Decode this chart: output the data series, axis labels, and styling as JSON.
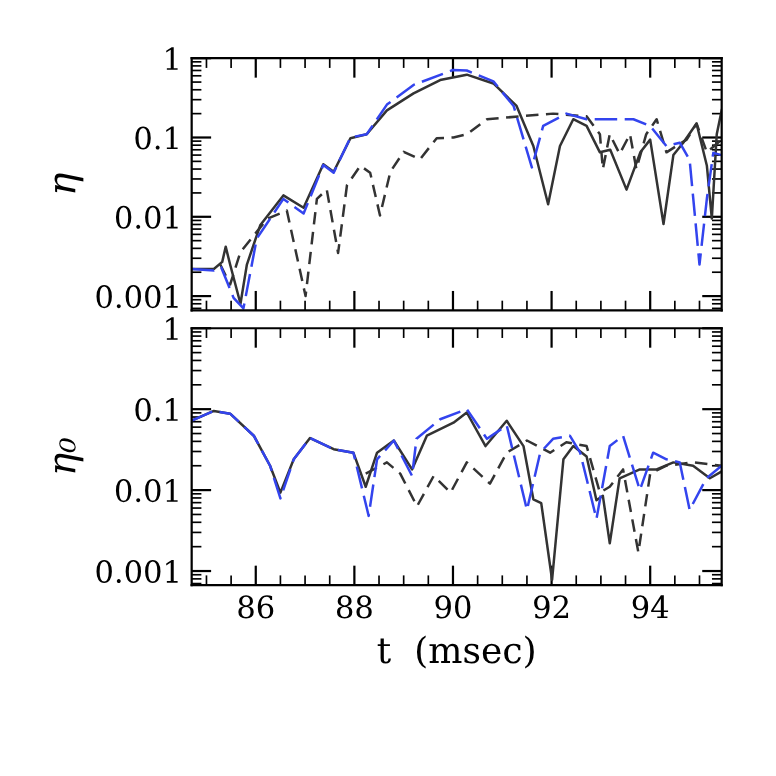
{
  "chart_data": [
    {
      "type": "line",
      "ylabel": "η",
      "log": "y",
      "xlim": [
        84.7,
        95.45
      ],
      "ylim": [
        0.00066,
        1
      ],
      "xticks": [
        86,
        88,
        90,
        92,
        94
      ],
      "yticks": [
        0.001,
        0.01,
        0.1,
        1
      ],
      "tick_labels": "y",
      "series": [
        {
          "color": "#333333",
          "line_style": "solid",
          "x": [
            84.7,
            85.15,
            85.32,
            85.39,
            85.48,
            85.69,
            85.82,
            86.09,
            86.56,
            86.97,
            87.37,
            87.58,
            87.92,
            88.25,
            88.66,
            89.2,
            89.74,
            90.28,
            90.82,
            91.29,
            91.63,
            91.93,
            92.17,
            92.44,
            92.71,
            92.98,
            93.19,
            93.52,
            93.8,
            94.0,
            94.27,
            94.47,
            94.67,
            94.94,
            95.15,
            95.25,
            95.35,
            95.45
          ],
          "values": [
            0.0022,
            0.0022,
            0.0027,
            0.0042,
            0.0025,
            0.0008,
            0.0025,
            0.0078,
            0.0186,
            0.013,
            0.046,
            0.037,
            0.098,
            0.11,
            0.22,
            0.36,
            0.53,
            0.62,
            0.48,
            0.25,
            0.078,
            0.0144,
            0.078,
            0.17,
            0.14,
            0.065,
            0.07,
            0.022,
            0.065,
            0.094,
            0.0081,
            0.06,
            0.086,
            0.15,
            0.044,
            0.0095,
            0.11,
            0.22
          ]
        },
        {
          "color": "#333333",
          "line_style": "dashed",
          "x": [
            85.28,
            85.48,
            85.69,
            86.23,
            86.63,
            87.01,
            87.24,
            87.44,
            87.67,
            87.85,
            88.12,
            88.32,
            88.52,
            88.73,
            89.0,
            89.33,
            89.67,
            90.01,
            90.28,
            90.69,
            91.36,
            92.03,
            92.71,
            92.98,
            93.04,
            93.18,
            93.38,
            93.59,
            93.72,
            93.92,
            94.13,
            94.33,
            94.53,
            94.74,
            94.94,
            95.15,
            95.45
          ],
          "values": [
            0.0025,
            0.0014,
            0.0036,
            0.0094,
            0.012,
            0.001,
            0.0168,
            0.022,
            0.0035,
            0.025,
            0.044,
            0.036,
            0.0104,
            0.037,
            0.066,
            0.053,
            0.098,
            0.1,
            0.11,
            0.17,
            0.185,
            0.2,
            0.185,
            0.11,
            0.04,
            0.11,
            0.062,
            0.11,
            0.04,
            0.11,
            0.17,
            0.065,
            0.078,
            0.094,
            0.15,
            0.065,
            0.094
          ]
        },
        {
          "color": "#3344ee",
          "line_style": "dashed",
          "x": [
            84.7,
            85.15,
            85.3,
            85.55,
            85.75,
            86.02,
            86.56,
            86.97,
            87.37,
            87.58,
            87.92,
            88.25,
            88.66,
            89.2,
            90.0,
            90.28,
            90.82,
            91.23,
            91.6,
            91.83,
            92.3,
            92.71,
            93.66,
            94.0,
            94.33,
            94.6,
            94.8,
            95.0,
            95.15,
            95.28,
            95.45
          ],
          "values": [
            0.0022,
            0.0021,
            0.0023,
            0.00095,
            0.0007,
            0.0053,
            0.0168,
            0.011,
            0.045,
            0.036,
            0.1,
            0.11,
            0.26,
            0.46,
            0.71,
            0.7,
            0.51,
            0.25,
            0.042,
            0.14,
            0.2,
            0.17,
            0.17,
            0.14,
            0.078,
            0.086,
            0.052,
            0.0025,
            0.017,
            0.064,
            0.06
          ]
        }
      ]
    },
    {
      "type": "line",
      "xlabel": "t  (msec)",
      "ylabel": "η₀",
      "log": "y",
      "xlim": [
        84.7,
        95.45
      ],
      "ylim": [
        0.00067,
        1
      ],
      "xticks": [
        86,
        88,
        90,
        92,
        94
      ],
      "yticks": [
        0.001,
        0.01,
        0.1,
        1
      ],
      "series": [
        {
          "color": "#333333",
          "line_style": "solid",
          "x": [
            84.7,
            85.15,
            85.48,
            85.96,
            86.29,
            86.5,
            86.77,
            87.1,
            87.58,
            87.98,
            88.23,
            88.46,
            88.8,
            89.17,
            89.47,
            90.01,
            90.28,
            90.66,
            91.09,
            91.43,
            91.63,
            91.79,
            92.01,
            92.24,
            92.44,
            92.71,
            92.91,
            93.04,
            93.18,
            93.38,
            93.79,
            94.13,
            94.47,
            94.87,
            95.21,
            95.45
          ],
          "values": [
            0.072,
            0.095,
            0.088,
            0.047,
            0.02,
            0.0093,
            0.024,
            0.044,
            0.032,
            0.029,
            0.011,
            0.029,
            0.041,
            0.018,
            0.047,
            0.068,
            0.091,
            0.035,
            0.072,
            0.035,
            0.0077,
            0.0069,
            0.00078,
            0.024,
            0.035,
            0.026,
            0.0075,
            0.0085,
            0.0022,
            0.014,
            0.018,
            0.018,
            0.022,
            0.02,
            0.014,
            0.017
          ]
        },
        {
          "color": "#333333",
          "line_style": "dashed",
          "x": [
            88.23,
            88.66,
            88.93,
            89.27,
            89.61,
            89.95,
            90.28,
            90.75,
            91.09,
            91.5,
            91.97,
            92.3,
            92.71,
            92.98,
            93.18,
            93.45,
            93.76,
            94.0,
            94.33,
            94.87,
            95.45
          ],
          "values": [
            0.016,
            0.022,
            0.016,
            0.0063,
            0.015,
            0.0093,
            0.022,
            0.012,
            0.029,
            0.041,
            0.029,
            0.039,
            0.035,
            0.0093,
            0.011,
            0.018,
            0.0017,
            0.016,
            0.02,
            0.022,
            0.02
          ]
        },
        {
          "color": "#3344ee",
          "line_style": "dashed",
          "x": [
            84.7,
            85.15,
            85.48,
            85.96,
            86.29,
            86.5,
            86.77,
            87.1,
            87.58,
            87.98,
            88.29,
            88.46,
            88.8,
            89.17,
            89.26,
            89.74,
            90.28,
            90.69,
            91.09,
            91.5,
            91.77,
            92.03,
            92.37,
            92.58,
            92.91,
            93.18,
            93.45,
            93.79,
            94.06,
            94.33,
            94.6,
            94.8,
            95.14,
            95.45
          ],
          "values": [
            0.072,
            0.095,
            0.088,
            0.047,
            0.02,
            0.0079,
            0.024,
            0.044,
            0.032,
            0.029,
            0.0048,
            0.024,
            0.041,
            0.015,
            0.043,
            0.075,
            0.1,
            0.043,
            0.063,
            0.0057,
            0.029,
            0.043,
            0.047,
            0.029,
            0.0044,
            0.035,
            0.047,
            0.01,
            0.029,
            0.024,
            0.022,
            0.0057,
            0.014,
            0.02
          ]
        }
      ]
    }
  ]
}
